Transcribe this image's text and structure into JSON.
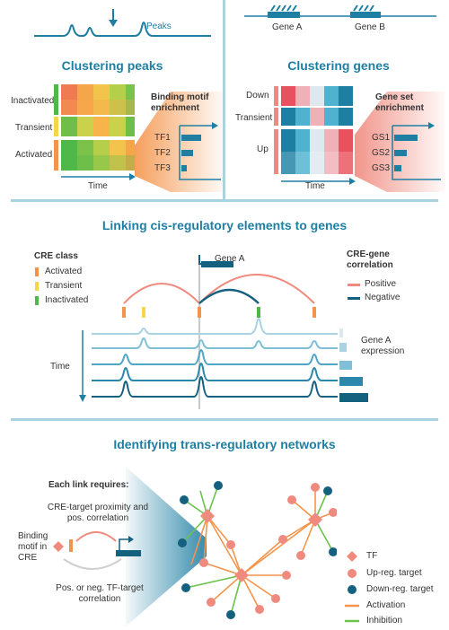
{
  "top_left": {
    "peaks_label": "Peaks",
    "title": "Clustering peaks",
    "row_labels": [
      "Inactivated",
      "Transient",
      "Activated"
    ],
    "motif_title": "Binding motif enrichment",
    "tf_labels": [
      "TF1",
      "TF2",
      "TF3"
    ],
    "time_label": "Time"
  },
  "top_right": {
    "gene_a": "Gene A",
    "gene_b": "Gene B",
    "title": "Clustering genes",
    "row_labels": [
      "Down",
      "Transient",
      "Up"
    ],
    "geneset_title": "Gene set enrichment",
    "gs_labels": [
      "GS1",
      "GS2",
      "GS3"
    ],
    "time_label": "Time"
  },
  "middle": {
    "title": "Linking cis-regulatory elements to genes",
    "cre_class_title": "CRE class",
    "cre_classes": [
      "Activated",
      "Transient",
      "Inactivated"
    ],
    "gene_label": "Gene A",
    "correlation_title": "CRE-gene correlation",
    "correlations": [
      "Positive",
      "Negative"
    ],
    "time_label": "Time",
    "expression_label": "Gene A expression"
  },
  "bottom": {
    "title": "Identifying trans-regulatory networks",
    "requires_title": "Each link requires:",
    "proximity": "CRE-target proximity and pos. correlation",
    "binding": "Binding motif in CRE",
    "tf_corr": "Pos. or neg. TF-target correlation",
    "legend": [
      "TF",
      "Up-reg. target",
      "Down-reg. target",
      "Activation",
      "Inhibition"
    ]
  },
  "colors": {
    "teal": "#1f7fa3",
    "dark_teal": "#14607f",
    "orange": "#f4944a",
    "yellow": "#f5d64a",
    "green": "#4fb848",
    "salmon": "#f08a7e",
    "rule": "#a9d2e0"
  }
}
